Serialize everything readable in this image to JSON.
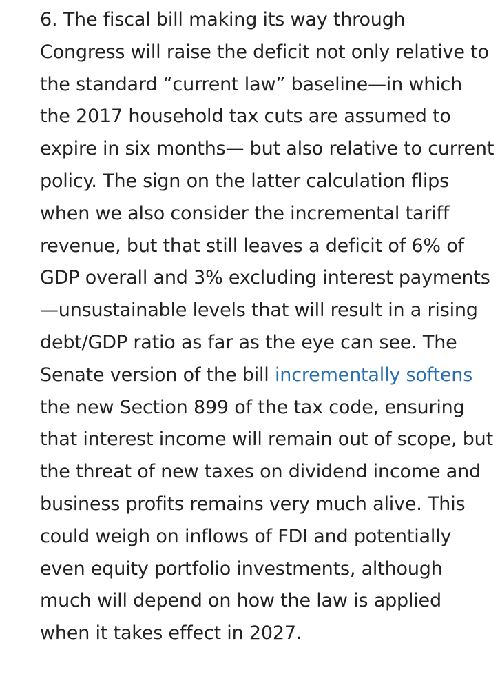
{
  "paragraph": {
    "before_link": "6. The fiscal bill making its way through Congress will raise the deficit not only relative to the standard “current law” baseline—in which the 2017 household tax cuts are assumed to expire in six months— but also relative to current policy. The sign on the latter calculation flips when we also consider the incremental tariff revenue, but that still leaves a deficit of 6% of GDP overall and 3% excluding interest payments—unsustainable levels that will result in a rising debt/GDP ratio as far as the eye can see. The Senate version of the bill ",
    "link_text": "incrementally softens",
    "after_link": " the new Section 899 of the tax code, ensuring that interest income will remain out of scope, but the threat of new taxes on dividend income and business profits remains very much alive. This could weigh on inflows of FDI and potentially even equity portfolio investments, although much will depend on how the law is applied when it takes effect in 2027."
  },
  "colors": {
    "text": "#222222",
    "link": "#2a6fb0",
    "background": "#ffffff"
  }
}
